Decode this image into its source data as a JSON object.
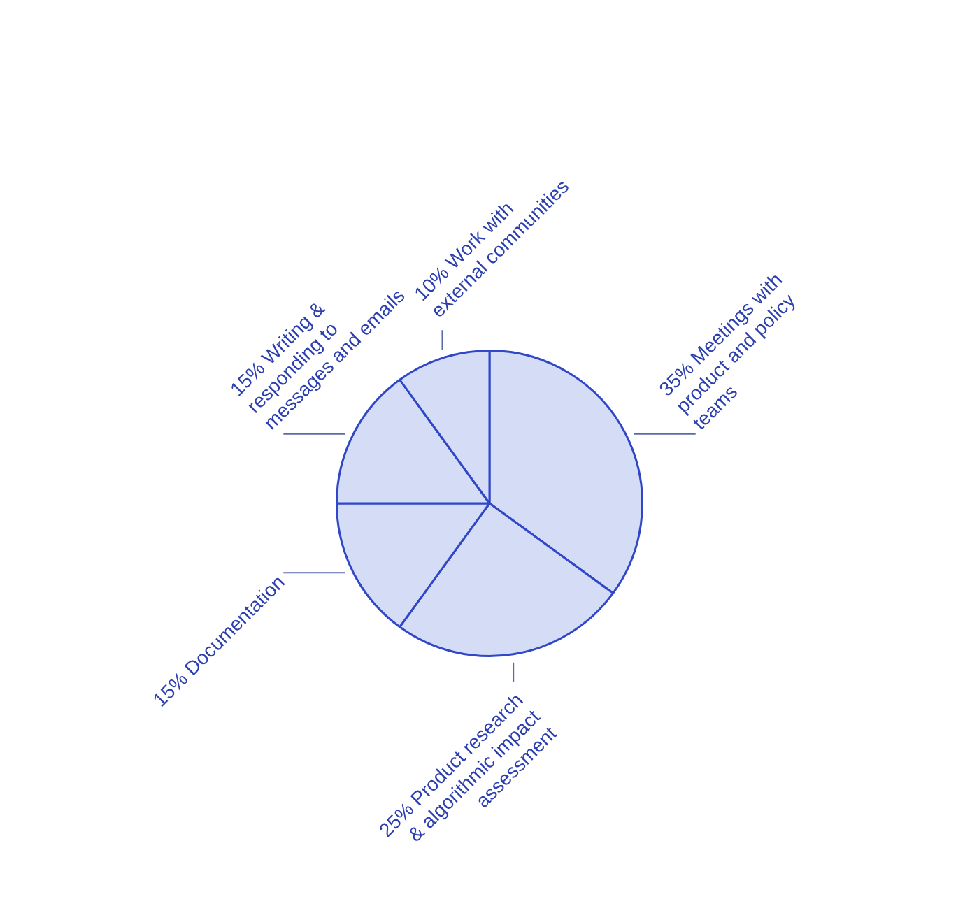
{
  "chart_data": {
    "type": "pie",
    "categories": [
      "Meetings with product and policy teams",
      "Product research & algorithmic impact assessment",
      "Documentation",
      "Writing & responding to messages and emails",
      "Work with external communities"
    ],
    "values": [
      35,
      25,
      15,
      15,
      10
    ],
    "value_labels": [
      "35%",
      "25%",
      "15%",
      "15%",
      "10%"
    ],
    "colors": [
      "#d5dcf6",
      "#d5dcf6",
      "#d5dcf6",
      "#d5dcf6",
      "#d5dcf6"
    ]
  }
}
